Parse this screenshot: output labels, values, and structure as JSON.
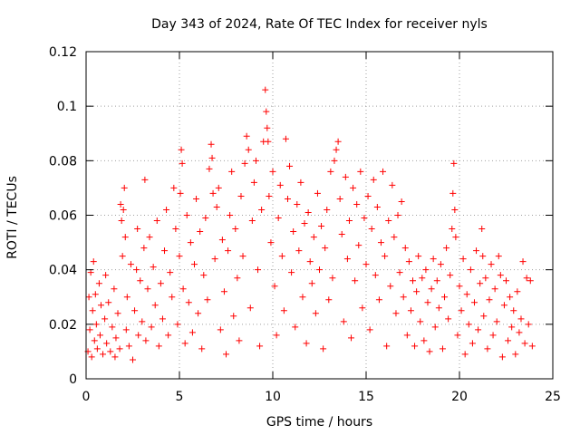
{
  "chart_data": {
    "type": "scatter",
    "title": "Day 343 of 2024, Rate Of TEC Index for receiver nyls",
    "xlabel": "GPS time / hours",
    "ylabel": "ROTI / TECUs",
    "xlim": [
      0,
      25
    ],
    "ylim": [
      0,
      0.12
    ],
    "xticks": [
      0,
      5,
      10,
      15,
      20,
      25
    ],
    "xtick_labels": [
      "0",
      "5",
      "10",
      "15",
      "20",
      "25"
    ],
    "yticks": [
      0,
      0.02,
      0.04,
      0.06,
      0.08,
      0.1,
      0.12
    ],
    "ytick_labels": [
      "0",
      "0.02",
      "0.04",
      "0.06",
      "0.08",
      "0.1",
      "0.12"
    ],
    "grid": true,
    "marker": "+",
    "color": "#ff0000",
    "points": [
      [
        0.1,
        0.01
      ],
      [
        0.15,
        0.03
      ],
      [
        0.2,
        0.018
      ],
      [
        0.25,
        0.039
      ],
      [
        0.3,
        0.008
      ],
      [
        0.35,
        0.025
      ],
      [
        0.4,
        0.043
      ],
      [
        0.45,
        0.014
      ],
      [
        0.5,
        0.031
      ],
      [
        0.55,
        0.02
      ],
      [
        0.6,
        0.011
      ],
      [
        0.7,
        0.035
      ],
      [
        0.75,
        0.016
      ],
      [
        0.8,
        0.027
      ],
      [
        0.9,
        0.009
      ],
      [
        1.0,
        0.022
      ],
      [
        1.05,
        0.038
      ],
      [
        1.1,
        0.013
      ],
      [
        1.2,
        0.028
      ],
      [
        1.3,
        0.01
      ],
      [
        1.4,
        0.019
      ],
      [
        1.5,
        0.033
      ],
      [
        1.55,
        0.008
      ],
      [
        1.6,
        0.015
      ],
      [
        1.7,
        0.024
      ],
      [
        1.8,
        0.011
      ],
      [
        1.85,
        0.064
      ],
      [
        1.9,
        0.058
      ],
      [
        1.95,
        0.045
      ],
      [
        2.0,
        0.062
      ],
      [
        2.05,
        0.07
      ],
      [
        2.1,
        0.052
      ],
      [
        2.15,
        0.018
      ],
      [
        2.2,
        0.03
      ],
      [
        2.3,
        0.012
      ],
      [
        2.4,
        0.042
      ],
      [
        2.5,
        0.007
      ],
      [
        2.6,
        0.025
      ],
      [
        2.7,
        0.04
      ],
      [
        2.75,
        0.055
      ],
      [
        2.8,
        0.016
      ],
      [
        2.9,
        0.036
      ],
      [
        3.0,
        0.021
      ],
      [
        3.1,
        0.048
      ],
      [
        3.15,
        0.073
      ],
      [
        3.2,
        0.014
      ],
      [
        3.3,
        0.033
      ],
      [
        3.4,
        0.052
      ],
      [
        3.5,
        0.019
      ],
      [
        3.6,
        0.041
      ],
      [
        3.7,
        0.027
      ],
      [
        3.8,
        0.058
      ],
      [
        3.9,
        0.012
      ],
      [
        4.0,
        0.035
      ],
      [
        4.1,
        0.022
      ],
      [
        4.2,
        0.047
      ],
      [
        4.3,
        0.062
      ],
      [
        4.4,
        0.016
      ],
      [
        4.5,
        0.039
      ],
      [
        4.6,
        0.03
      ],
      [
        4.7,
        0.07
      ],
      [
        4.8,
        0.055
      ],
      [
        4.9,
        0.02
      ],
      [
        5.0,
        0.045
      ],
      [
        5.05,
        0.068
      ],
      [
        5.1,
        0.084
      ],
      [
        5.15,
        0.079
      ],
      [
        5.2,
        0.033
      ],
      [
        5.3,
        0.013
      ],
      [
        5.4,
        0.06
      ],
      [
        5.5,
        0.028
      ],
      [
        5.6,
        0.05
      ],
      [
        5.7,
        0.017
      ],
      [
        5.8,
        0.042
      ],
      [
        5.9,
        0.066
      ],
      [
        6.0,
        0.024
      ],
      [
        6.1,
        0.054
      ],
      [
        6.2,
        0.011
      ],
      [
        6.3,
        0.038
      ],
      [
        6.4,
        0.059
      ],
      [
        6.5,
        0.029
      ],
      [
        6.6,
        0.077
      ],
      [
        6.7,
        0.086
      ],
      [
        6.75,
        0.081
      ],
      [
        6.8,
        0.068
      ],
      [
        6.9,
        0.044
      ],
      [
        7.0,
        0.063
      ],
      [
        7.1,
        0.07
      ],
      [
        7.2,
        0.018
      ],
      [
        7.3,
        0.051
      ],
      [
        7.4,
        0.032
      ],
      [
        7.5,
        0.009
      ],
      [
        7.6,
        0.047
      ],
      [
        7.7,
        0.06
      ],
      [
        7.8,
        0.076
      ],
      [
        7.9,
        0.023
      ],
      [
        8.0,
        0.055
      ],
      [
        8.1,
        0.037
      ],
      [
        8.2,
        0.014
      ],
      [
        8.3,
        0.067
      ],
      [
        8.4,
        0.045
      ],
      [
        8.5,
        0.079
      ],
      [
        8.6,
        0.089
      ],
      [
        8.7,
        0.084
      ],
      [
        8.8,
        0.026
      ],
      [
        8.9,
        0.058
      ],
      [
        9.0,
        0.072
      ],
      [
        9.1,
        0.08
      ],
      [
        9.2,
        0.04
      ],
      [
        9.3,
        0.012
      ],
      [
        9.4,
        0.062
      ],
      [
        9.5,
        0.087
      ],
      [
        9.6,
        0.106
      ],
      [
        9.65,
        0.098
      ],
      [
        9.7,
        0.092
      ],
      [
        9.75,
        0.087
      ],
      [
        9.8,
        0.067
      ],
      [
        9.9,
        0.05
      ],
      [
        10.0,
        0.076
      ],
      [
        10.1,
        0.034
      ],
      [
        10.2,
        0.016
      ],
      [
        10.3,
        0.059
      ],
      [
        10.4,
        0.071
      ],
      [
        10.5,
        0.045
      ],
      [
        10.6,
        0.025
      ],
      [
        10.7,
        0.088
      ],
      [
        10.8,
        0.066
      ],
      [
        10.9,
        0.078
      ],
      [
        11.0,
        0.039
      ],
      [
        11.1,
        0.054
      ],
      [
        11.2,
        0.019
      ],
      [
        11.3,
        0.064
      ],
      [
        11.4,
        0.047
      ],
      [
        11.5,
        0.072
      ],
      [
        11.6,
        0.03
      ],
      [
        11.7,
        0.057
      ],
      [
        11.8,
        0.013
      ],
      [
        11.9,
        0.061
      ],
      [
        12.0,
        0.043
      ],
      [
        12.1,
        0.035
      ],
      [
        12.2,
        0.052
      ],
      [
        12.3,
        0.024
      ],
      [
        12.4,
        0.068
      ],
      [
        12.5,
        0.04
      ],
      [
        12.6,
        0.056
      ],
      [
        12.7,
        0.011
      ],
      [
        12.8,
        0.048
      ],
      [
        12.9,
        0.062
      ],
      [
        13.0,
        0.029
      ],
      [
        13.1,
        0.076
      ],
      [
        13.2,
        0.037
      ],
      [
        13.3,
        0.08
      ],
      [
        13.4,
        0.084
      ],
      [
        13.5,
        0.087
      ],
      [
        13.6,
        0.066
      ],
      [
        13.7,
        0.053
      ],
      [
        13.8,
        0.021
      ],
      [
        13.9,
        0.074
      ],
      [
        14.0,
        0.044
      ],
      [
        14.1,
        0.058
      ],
      [
        14.2,
        0.015
      ],
      [
        14.3,
        0.07
      ],
      [
        14.4,
        0.036
      ],
      [
        14.5,
        0.064
      ],
      [
        14.6,
        0.049
      ],
      [
        14.7,
        0.076
      ],
      [
        14.8,
        0.026
      ],
      [
        14.9,
        0.059
      ],
      [
        15.0,
        0.042
      ],
      [
        15.1,
        0.067
      ],
      [
        15.2,
        0.018
      ],
      [
        15.3,
        0.055
      ],
      [
        15.4,
        0.073
      ],
      [
        15.5,
        0.038
      ],
      [
        15.6,
        0.063
      ],
      [
        15.7,
        0.029
      ],
      [
        15.8,
        0.05
      ],
      [
        15.9,
        0.076
      ],
      [
        16.0,
        0.045
      ],
      [
        16.1,
        0.012
      ],
      [
        16.2,
        0.058
      ],
      [
        16.3,
        0.034
      ],
      [
        16.4,
        0.071
      ],
      [
        16.5,
        0.052
      ],
      [
        16.6,
        0.024
      ],
      [
        16.7,
        0.06
      ],
      [
        16.8,
        0.039
      ],
      [
        16.9,
        0.065
      ],
      [
        17.0,
        0.03
      ],
      [
        17.1,
        0.048
      ],
      [
        17.2,
        0.016
      ],
      [
        17.3,
        0.043
      ],
      [
        17.4,
        0.025
      ],
      [
        17.5,
        0.036
      ],
      [
        17.6,
        0.012
      ],
      [
        17.7,
        0.032
      ],
      [
        17.8,
        0.045
      ],
      [
        17.9,
        0.021
      ],
      [
        18.0,
        0.037
      ],
      [
        18.1,
        0.014
      ],
      [
        18.2,
        0.04
      ],
      [
        18.3,
        0.028
      ],
      [
        18.4,
        0.01
      ],
      [
        18.5,
        0.033
      ],
      [
        18.6,
        0.044
      ],
      [
        18.7,
        0.019
      ],
      [
        18.8,
        0.036
      ],
      [
        18.9,
        0.026
      ],
      [
        19.0,
        0.042
      ],
      [
        19.1,
        0.011
      ],
      [
        19.2,
        0.03
      ],
      [
        19.3,
        0.048
      ],
      [
        19.4,
        0.022
      ],
      [
        19.5,
        0.038
      ],
      [
        19.6,
        0.055
      ],
      [
        19.65,
        0.068
      ],
      [
        19.7,
        0.079
      ],
      [
        19.75,
        0.062
      ],
      [
        19.8,
        0.052
      ],
      [
        19.9,
        0.016
      ],
      [
        20.0,
        0.034
      ],
      [
        20.1,
        0.025
      ],
      [
        20.2,
        0.044
      ],
      [
        20.3,
        0.009
      ],
      [
        20.4,
        0.031
      ],
      [
        20.5,
        0.02
      ],
      [
        20.6,
        0.04
      ],
      [
        20.7,
        0.013
      ],
      [
        20.8,
        0.028
      ],
      [
        20.9,
        0.047
      ],
      [
        21.0,
        0.018
      ],
      [
        21.1,
        0.035
      ],
      [
        21.2,
        0.055
      ],
      [
        21.25,
        0.045
      ],
      [
        21.3,
        0.023
      ],
      [
        21.4,
        0.037
      ],
      [
        21.5,
        0.011
      ],
      [
        21.6,
        0.029
      ],
      [
        21.7,
        0.042
      ],
      [
        21.8,
        0.016
      ],
      [
        21.9,
        0.033
      ],
      [
        22.0,
        0.021
      ],
      [
        22.1,
        0.045
      ],
      [
        22.2,
        0.038
      ],
      [
        22.3,
        0.008
      ],
      [
        22.4,
        0.027
      ],
      [
        22.5,
        0.036
      ],
      [
        22.6,
        0.014
      ],
      [
        22.7,
        0.03
      ],
      [
        22.8,
        0.019
      ],
      [
        22.9,
        0.025
      ],
      [
        23.0,
        0.009
      ],
      [
        23.1,
        0.032
      ],
      [
        23.2,
        0.017
      ],
      [
        23.3,
        0.022
      ],
      [
        23.4,
        0.043
      ],
      [
        23.5,
        0.013
      ],
      [
        23.6,
        0.037
      ],
      [
        23.7,
        0.02
      ],
      [
        23.8,
        0.036
      ],
      [
        23.9,
        0.012
      ]
    ]
  }
}
